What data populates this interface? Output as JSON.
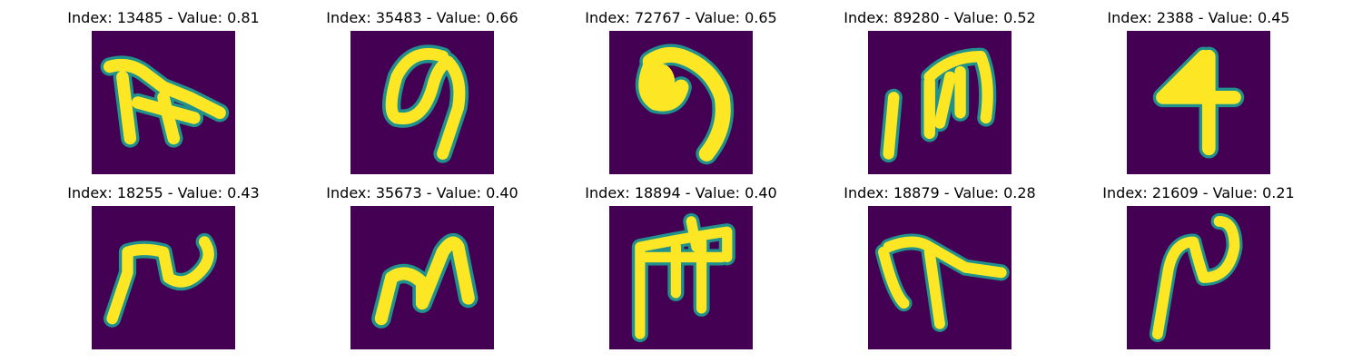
{
  "colors": {
    "background": "#440154",
    "stroke": "#fde725",
    "edge": "#21918c",
    "edge_light": "#5ec962"
  },
  "panels": [
    {
      "title": "Index: 13485 - Value: 0.81"
    },
    {
      "title": "Index: 35483 - Value: 0.66"
    },
    {
      "title": "Index: 72767 - Value: 0.65"
    },
    {
      "title": "Index: 89280 - Value: 0.52"
    },
    {
      "title": "Index: 2388 - Value: 0.45"
    },
    {
      "title": "Index: 18255 - Value: 0.43"
    },
    {
      "title": "Index: 35673 - Value: 0.40"
    },
    {
      "title": "Index: 18894 - Value: 0.40"
    },
    {
      "title": "Index: 18879 - Value: 0.28"
    },
    {
      "title": "Index: 21609 - Value: 0.21"
    }
  ]
}
